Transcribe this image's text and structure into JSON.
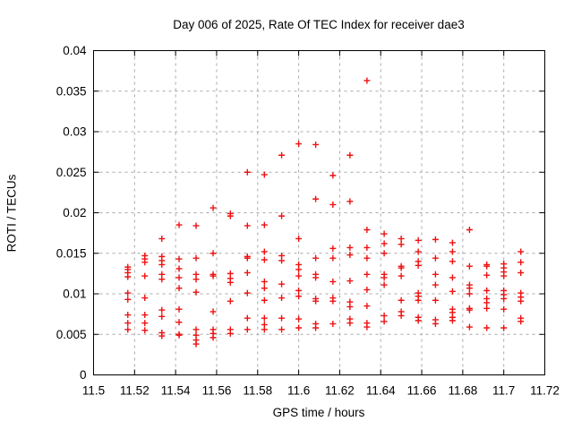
{
  "chart": {
    "title": "Day 006 of 2025, Rate Of TEC Index for receiver dae3",
    "xlabel": "GPS time / hours",
    "ylabel": "ROTI / TECUs"
  },
  "chart_data": {
    "type": "scatter",
    "title": "Day 006 of 2025, Rate Of TEC Index for receiver dae3",
    "xlabel": "GPS time / hours",
    "ylabel": "ROTI / TECUs",
    "xlim": [
      11.5,
      11.72
    ],
    "ylim": [
      0,
      0.04
    ],
    "x_ticks": [
      11.5,
      11.52,
      11.54,
      11.56,
      11.58,
      11.6,
      11.62,
      11.64,
      11.66,
      11.68,
      11.7,
      11.72
    ],
    "x_tick_labels": [
      "11.5",
      "11.52",
      "11.54",
      "11.56",
      "11.58",
      "11.6",
      "11.62",
      "11.64",
      "11.66",
      "11.68",
      "11.7",
      "11.72"
    ],
    "y_ticks": [
      0,
      0.005,
      0.01,
      0.015,
      0.02,
      0.025,
      0.03,
      0.035,
      0.04
    ],
    "y_tick_labels": [
      "0",
      "0.005",
      "0.01",
      "0.015",
      "0.02",
      "0.025",
      "0.03",
      "0.035",
      "0.04"
    ],
    "grid": true,
    "grid_color": "#a8a8a8",
    "marker_color": "#ee1111",
    "marker_symbol": "plus",
    "series": [
      {
        "name": "ROTI",
        "points": [
          [
            11.5167,
            0.0133
          ],
          [
            11.5167,
            0.013
          ],
          [
            11.5167,
            0.0126
          ],
          [
            11.5167,
            0.0121
          ],
          [
            11.5167,
            0.0101
          ],
          [
            11.5167,
            0.0093
          ],
          [
            11.5167,
            0.0074
          ],
          [
            11.5167,
            0.0064
          ],
          [
            11.5167,
            0.0056
          ],
          [
            11.525,
            0.0147
          ],
          [
            11.525,
            0.0143
          ],
          [
            11.525,
            0.0139
          ],
          [
            11.525,
            0.0122
          ],
          [
            11.525,
            0.0095
          ],
          [
            11.525,
            0.0074
          ],
          [
            11.525,
            0.0064
          ],
          [
            11.525,
            0.0055
          ],
          [
            11.5333,
            0.0168
          ],
          [
            11.5333,
            0.0146
          ],
          [
            11.5333,
            0.0141
          ],
          [
            11.5333,
            0.0136
          ],
          [
            11.5333,
            0.0124
          ],
          [
            11.5333,
            0.0118
          ],
          [
            11.5333,
            0.008
          ],
          [
            11.5333,
            0.0072
          ],
          [
            11.5333,
            0.0052
          ],
          [
            11.5333,
            0.0048
          ],
          [
            11.5417,
            0.0185
          ],
          [
            11.5417,
            0.0143
          ],
          [
            11.5417,
            0.0131
          ],
          [
            11.5417,
            0.012
          ],
          [
            11.5417,
            0.0107
          ],
          [
            11.5417,
            0.0081
          ],
          [
            11.5417,
            0.0065
          ],
          [
            11.5417,
            0.005
          ],
          [
            11.5417,
            0.0049
          ],
          [
            11.55,
            0.0184
          ],
          [
            11.55,
            0.0144
          ],
          [
            11.55,
            0.0124
          ],
          [
            11.55,
            0.0118
          ],
          [
            11.55,
            0.0102
          ],
          [
            11.55,
            0.0056
          ],
          [
            11.55,
            0.0049
          ],
          [
            11.55,
            0.0043
          ],
          [
            11.55,
            0.0038
          ],
          [
            11.5583,
            0.0206
          ],
          [
            11.5583,
            0.015
          ],
          [
            11.5583,
            0.0124
          ],
          [
            11.5583,
            0.0122
          ],
          [
            11.5583,
            0.0078
          ],
          [
            11.5583,
            0.0056
          ],
          [
            11.5583,
            0.0051
          ],
          [
            11.5583,
            0.0046
          ],
          [
            11.5667,
            0.0199
          ],
          [
            11.5667,
            0.0196
          ],
          [
            11.5667,
            0.0125
          ],
          [
            11.5667,
            0.0119
          ],
          [
            11.5667,
            0.0114
          ],
          [
            11.5667,
            0.0091
          ],
          [
            11.5667,
            0.0056
          ],
          [
            11.5667,
            0.0051
          ],
          [
            11.575,
            0.025
          ],
          [
            11.575,
            0.0184
          ],
          [
            11.575,
            0.0146
          ],
          [
            11.575,
            0.0144
          ],
          [
            11.575,
            0.0126
          ],
          [
            11.575,
            0.0101
          ],
          [
            11.575,
            0.007
          ],
          [
            11.575,
            0.0056
          ],
          [
            11.5833,
            0.0247
          ],
          [
            11.5833,
            0.0185
          ],
          [
            11.5833,
            0.0152
          ],
          [
            11.5833,
            0.0142
          ],
          [
            11.5833,
            0.0115
          ],
          [
            11.5833,
            0.0107
          ],
          [
            11.5833,
            0.0092
          ],
          [
            11.5833,
            0.007
          ],
          [
            11.5833,
            0.0062
          ],
          [
            11.5833,
            0.0056
          ],
          [
            11.5917,
            0.0271
          ],
          [
            11.5917,
            0.0196
          ],
          [
            11.5917,
            0.0147
          ],
          [
            11.5917,
            0.0141
          ],
          [
            11.5917,
            0.0112
          ],
          [
            11.5917,
            0.0095
          ],
          [
            11.5917,
            0.007
          ],
          [
            11.5917,
            0.0056
          ],
          [
            11.6,
            0.0285
          ],
          [
            11.6,
            0.0168
          ],
          [
            11.6,
            0.0136
          ],
          [
            11.6,
            0.013
          ],
          [
            11.6,
            0.0122
          ],
          [
            11.6,
            0.0104
          ],
          [
            11.6,
            0.0097
          ],
          [
            11.6,
            0.0069
          ],
          [
            11.6,
            0.0058
          ],
          [
            11.6083,
            0.0284
          ],
          [
            11.6083,
            0.0217
          ],
          [
            11.6083,
            0.0144
          ],
          [
            11.6083,
            0.0124
          ],
          [
            11.6083,
            0.012
          ],
          [
            11.6083,
            0.0094
          ],
          [
            11.6083,
            0.0091
          ],
          [
            11.6083,
            0.0063
          ],
          [
            11.6083,
            0.0058
          ],
          [
            11.6167,
            0.0246
          ],
          [
            11.6167,
            0.021
          ],
          [
            11.6167,
            0.0156
          ],
          [
            11.6167,
            0.0144
          ],
          [
            11.6167,
            0.0115
          ],
          [
            11.6167,
            0.0095
          ],
          [
            11.6167,
            0.0091
          ],
          [
            11.6167,
            0.0063
          ],
          [
            11.625,
            0.0271
          ],
          [
            11.625,
            0.0214
          ],
          [
            11.625,
            0.0157
          ],
          [
            11.625,
            0.0148
          ],
          [
            11.625,
            0.0116
          ],
          [
            11.625,
            0.009
          ],
          [
            11.625,
            0.0084
          ],
          [
            11.625,
            0.0069
          ],
          [
            11.625,
            0.0064
          ],
          [
            11.6333,
            0.0363
          ],
          [
            11.6333,
            0.0179
          ],
          [
            11.6333,
            0.0157
          ],
          [
            11.6333,
            0.0144
          ],
          [
            11.6333,
            0.0124
          ],
          [
            11.6333,
            0.0105
          ],
          [
            11.6333,
            0.0085
          ],
          [
            11.6333,
            0.0064
          ],
          [
            11.6333,
            0.0059
          ],
          [
            11.6417,
            0.0174
          ],
          [
            11.6417,
            0.0162
          ],
          [
            11.6417,
            0.015
          ],
          [
            11.6417,
            0.0124
          ],
          [
            11.6417,
            0.012
          ],
          [
            11.6417,
            0.0111
          ],
          [
            11.6417,
            0.0073
          ],
          [
            11.6417,
            0.0066
          ],
          [
            11.65,
            0.0168
          ],
          [
            11.65,
            0.0161
          ],
          [
            11.65,
            0.0134
          ],
          [
            11.65,
            0.0132
          ],
          [
            11.65,
            0.0122
          ],
          [
            11.65,
            0.0092
          ],
          [
            11.65,
            0.0078
          ],
          [
            11.65,
            0.0073
          ],
          [
            11.6583,
            0.0166
          ],
          [
            11.6583,
            0.0152
          ],
          [
            11.6583,
            0.014
          ],
          [
            11.6583,
            0.0135
          ],
          [
            11.6583,
            0.0101
          ],
          [
            11.6583,
            0.0097
          ],
          [
            11.6583,
            0.0092
          ],
          [
            11.6583,
            0.0071
          ],
          [
            11.6583,
            0.0067
          ],
          [
            11.6667,
            0.0167
          ],
          [
            11.6667,
            0.0144
          ],
          [
            11.6667,
            0.0124
          ],
          [
            11.6667,
            0.0111
          ],
          [
            11.6667,
            0.0092
          ],
          [
            11.6667,
            0.0068
          ],
          [
            11.6667,
            0.0063
          ],
          [
            11.675,
            0.0163
          ],
          [
            11.675,
            0.0152
          ],
          [
            11.675,
            0.014
          ],
          [
            11.675,
            0.012
          ],
          [
            11.675,
            0.0103
          ],
          [
            11.675,
            0.0081
          ],
          [
            11.675,
            0.0077
          ],
          [
            11.675,
            0.0071
          ],
          [
            11.675,
            0.0067
          ],
          [
            11.6833,
            0.0179
          ],
          [
            11.6833,
            0.0134
          ],
          [
            11.6833,
            0.0111
          ],
          [
            11.6833,
            0.0107
          ],
          [
            11.6833,
            0.01
          ],
          [
            11.6833,
            0.0082
          ],
          [
            11.6833,
            0.008
          ],
          [
            11.6833,
            0.0059
          ],
          [
            11.6917,
            0.0136
          ],
          [
            11.6917,
            0.0134
          ],
          [
            11.6917,
            0.0123
          ],
          [
            11.6917,
            0.0104
          ],
          [
            11.6917,
            0.0094
          ],
          [
            11.6917,
            0.0089
          ],
          [
            11.6917,
            0.0082
          ],
          [
            11.6917,
            0.0058
          ],
          [
            11.7,
            0.0137
          ],
          [
            11.7,
            0.0132
          ],
          [
            11.7,
            0.0127
          ],
          [
            11.7,
            0.0122
          ],
          [
            11.7,
            0.0104
          ],
          [
            11.7,
            0.0099
          ],
          [
            11.7,
            0.0094
          ],
          [
            11.7,
            0.0081
          ],
          [
            11.7,
            0.0058
          ],
          [
            11.7083,
            0.0152
          ],
          [
            11.7083,
            0.0139
          ],
          [
            11.7083,
            0.0126
          ],
          [
            11.7083,
            0.0101
          ],
          [
            11.7083,
            0.0096
          ],
          [
            11.7083,
            0.0091
          ],
          [
            11.7083,
            0.007
          ],
          [
            11.7083,
            0.0066
          ]
        ]
      }
    ]
  }
}
